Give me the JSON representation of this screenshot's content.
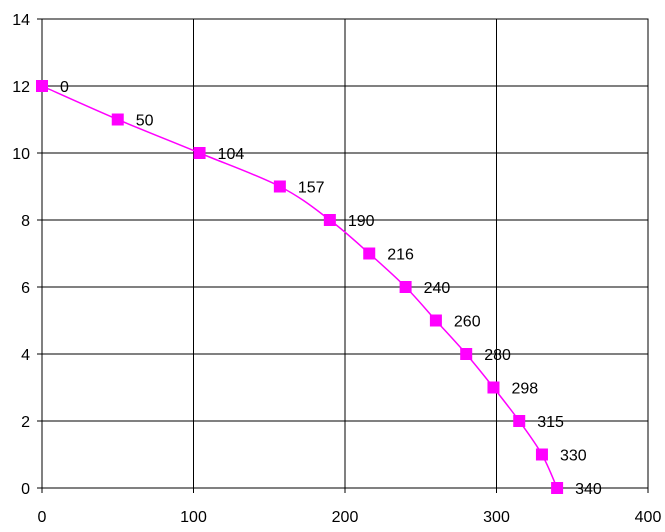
{
  "chart_data": {
    "type": "scatter",
    "title": "",
    "xlabel": "",
    "ylabel": "",
    "xlim": [
      0,
      400
    ],
    "ylim": [
      0,
      14
    ],
    "x_ticks": [
      0,
      100,
      200,
      300,
      400
    ],
    "y_ticks": [
      0,
      2,
      4,
      6,
      8,
      10,
      12,
      14
    ],
    "grid": true,
    "legend": "none",
    "series": [
      {
        "color": "#ff00ff",
        "marker": "square",
        "connected": "smooth-line",
        "points": [
          {
            "x": 0,
            "y": 12,
            "label": "0"
          },
          {
            "x": 50,
            "y": 11,
            "label": "50"
          },
          {
            "x": 104,
            "y": 10,
            "label": "104"
          },
          {
            "x": 157,
            "y": 9,
            "label": "157"
          },
          {
            "x": 190,
            "y": 8,
            "label": "190"
          },
          {
            "x": 216,
            "y": 7,
            "label": "216"
          },
          {
            "x": 240,
            "y": 6,
            "label": "240"
          },
          {
            "x": 260,
            "y": 5,
            "label": "260"
          },
          {
            "x": 280,
            "y": 4,
            "label": "280"
          },
          {
            "x": 298,
            "y": 3,
            "label": "298"
          },
          {
            "x": 315,
            "y": 2,
            "label": "315"
          },
          {
            "x": 330,
            "y": 1,
            "label": "330"
          },
          {
            "x": 340,
            "y": 0,
            "label": "340"
          }
        ]
      }
    ]
  }
}
